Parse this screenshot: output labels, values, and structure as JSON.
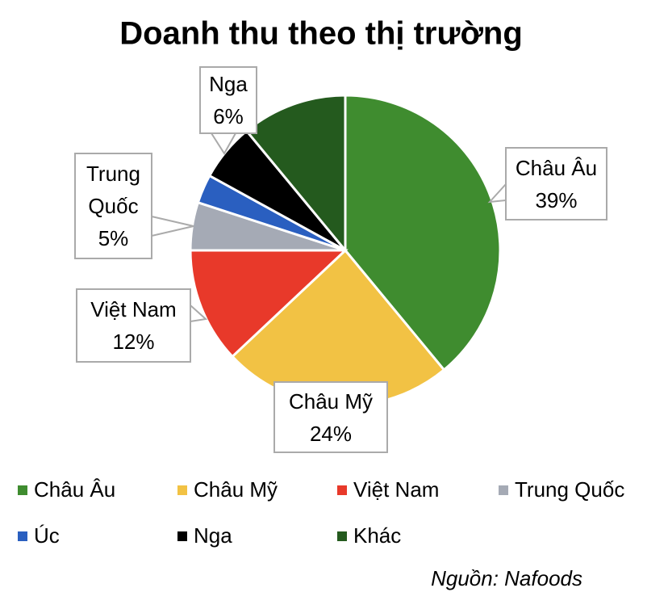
{
  "chart_data": {
    "type": "pie",
    "title": "Doanh thu theo thị trường",
    "categories": [
      "Châu Âu",
      "Châu Mỹ",
      "Việt Nam",
      "Trung Quốc",
      "Úc",
      "Nga",
      "Khác"
    ],
    "values": [
      39,
      24,
      12,
      5,
      3,
      6,
      11
    ],
    "value_labels": [
      "39%",
      "24%",
      "12%",
      "5%",
      null,
      "6%",
      null
    ],
    "colors": [
      "#3f8c2f",
      "#f2c244",
      "#e8392a",
      "#a5aab5",
      "#2a5fc0",
      "#000000",
      "#245a1e"
    ],
    "legend": "bottom",
    "source": "Nguồn: Nafoods"
  }
}
